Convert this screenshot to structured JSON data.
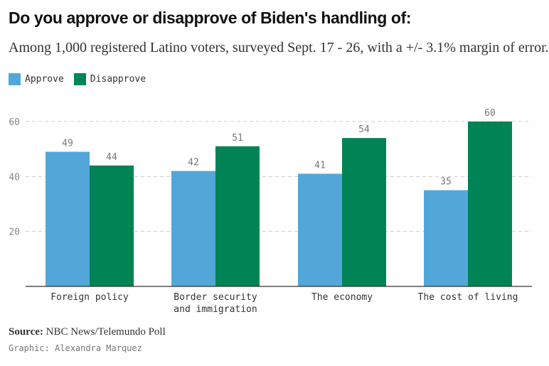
{
  "chart_data": {
    "type": "bar",
    "title": "Do you approve or disapprove of Biden's handling of:",
    "subtitle": "Among 1,000 registered Latino voters, surveyed Sept. 17 - 26, with a +/- 3.1% margin of error.",
    "categories": [
      "Foreign policy",
      "Border security and immigration",
      "The economy",
      "The cost of living"
    ],
    "category_lines": [
      [
        "Foreign policy"
      ],
      [
        "Border security",
        "and immigration"
      ],
      [
        "The economy"
      ],
      [
        "The cost of living"
      ]
    ],
    "series": [
      {
        "name": "Approve",
        "values": [
          49,
          42,
          41,
          35
        ],
        "color": "#53a7d8"
      },
      {
        "name": "Disapprove",
        "values": [
          44,
          51,
          54,
          60
        ],
        "color": "#008456"
      }
    ],
    "ylim": [
      0,
      60
    ],
    "yticks": [
      20,
      40,
      60
    ],
    "ytick_labels": [
      "20",
      "40",
      "60"
    ],
    "grid": true,
    "legend_position": "top-left"
  },
  "footer": {
    "source_label": "Source:",
    "source_text": " NBC News/Telemundo Poll",
    "credit": "Graphic: Alexandra Marquez"
  }
}
